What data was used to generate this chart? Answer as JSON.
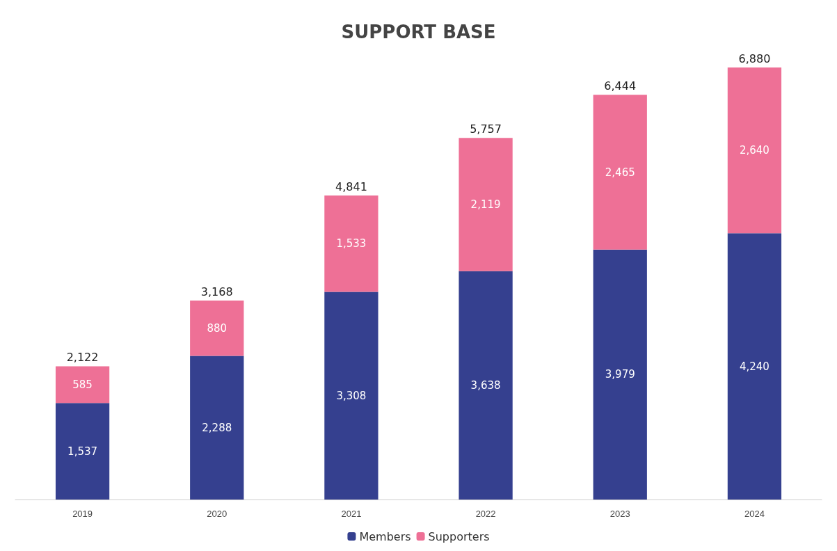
{
  "chart_data": {
    "type": "bar",
    "title": "SUPPORT BASE",
    "categories": [
      "2019",
      "2020",
      "2021",
      "2022",
      "2023",
      "2024"
    ],
    "stacked": true,
    "legend": "bottom",
    "series": [
      {
        "name": "Members",
        "color": "#35408f",
        "values": [
          1537,
          2288,
          3308,
          3638,
          3979,
          4240
        ],
        "value_labels": [
          "1,537",
          "2,288",
          "3,308",
          "3,638",
          "3,979",
          "4,240"
        ]
      },
      {
        "name": "Supporters",
        "color": "#ee7096",
        "values": [
          585,
          880,
          1533,
          2119,
          2465,
          2640
        ],
        "value_labels": [
          "585",
          "880",
          "1,533",
          "2,119",
          "2,465",
          "2,640"
        ]
      }
    ],
    "totals": [
      "2,122",
      "3,168",
      "4,841",
      "5,757",
      "6,444",
      "6,880"
    ]
  }
}
